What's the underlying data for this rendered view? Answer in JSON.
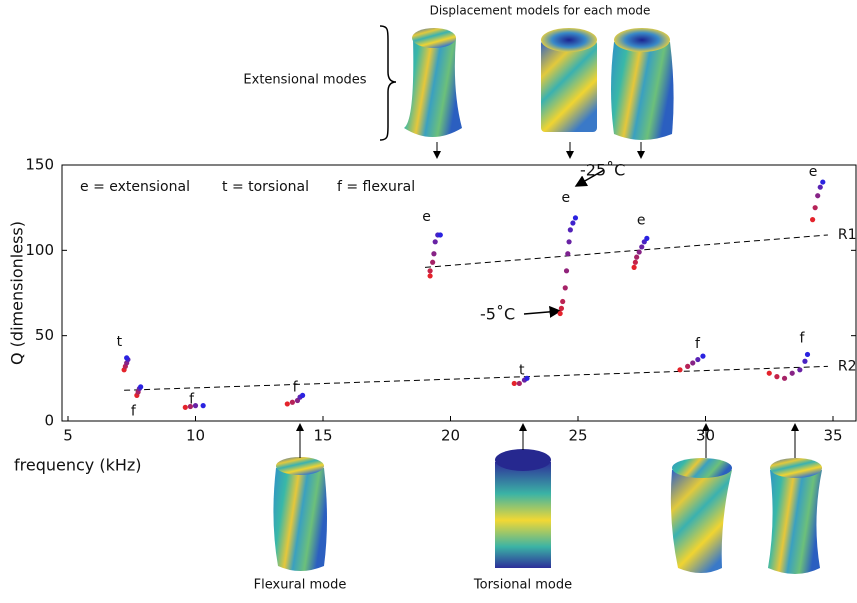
{
  "chart_data": {
    "type": "scatter",
    "title": "Displacement models for each mode",
    "x_label": "frequency (kHz)",
    "y_label": "Q (dimensionless)",
    "xlim": [
      5,
      36
    ],
    "ylim": [
      0,
      150
    ],
    "xticks": [
      5,
      10,
      15,
      20,
      25,
      30,
      35
    ],
    "yticks": [
      0,
      50,
      100,
      150
    ],
    "colors": [
      "#e4232b",
      "#2a22e0"
    ],
    "legend_texts": [
      "e = extensional",
      "t = torsional",
      "f = flexural"
    ],
    "mode_labels": [
      "Extensional modes",
      "Flexural mode",
      "Torsional mode"
    ],
    "temperature_labels": [
      "-25˚C",
      "-5˚C"
    ],
    "series": [
      {
        "label": "t",
        "x": [
          7.2,
          7.25,
          7.3,
          7.35,
          7.3
        ],
        "values": [
          30,
          32,
          34,
          36,
          37
        ]
      },
      {
        "label": "f",
        "x": [
          7.7,
          7.75,
          7.8,
          7.85
        ],
        "values": [
          15,
          17,
          19,
          20
        ]
      },
      {
        "label": "f",
        "x": [
          9.6,
          9.8,
          10.0,
          10.3
        ],
        "values": [
          8,
          8.5,
          9,
          9
        ]
      },
      {
        "label": "f",
        "x": [
          13.6,
          13.8,
          14.0,
          14.1,
          14.2
        ],
        "values": [
          10,
          11,
          12,
          14,
          15
        ]
      },
      {
        "label": "e",
        "x": [
          19.2,
          19.2,
          19.3,
          19.35,
          19.4,
          19.5,
          19.6
        ],
        "values": [
          85,
          88,
          93,
          98,
          105,
          109,
          109
        ]
      },
      {
        "label": "t",
        "x": [
          22.5,
          22.7,
          22.9,
          23.0
        ],
        "values": [
          22,
          22,
          24,
          25
        ]
      },
      {
        "label": "e",
        "x": [
          24.3,
          24.35,
          24.4,
          24.5,
          24.55,
          24.6,
          24.65,
          24.7,
          24.8,
          24.9
        ],
        "values": [
          63,
          66,
          70,
          78,
          88,
          98,
          105,
          112,
          116,
          119
        ]
      },
      {
        "label": "e",
        "x": [
          27.2,
          27.25,
          27.3,
          27.4,
          27.5,
          27.6,
          27.7
        ],
        "values": [
          90,
          93,
          96,
          99,
          102,
          105,
          107
        ]
      },
      {
        "label": "f",
        "x": [
          29.0,
          29.3,
          29.5,
          29.7,
          29.9
        ],
        "values": [
          30,
          32,
          34,
          36,
          38
        ]
      },
      {
        "label": "f",
        "x": [
          32.5,
          32.8,
          33.1,
          33.4,
          33.7,
          33.9,
          34.0
        ],
        "values": [
          28,
          26,
          25,
          28,
          30,
          35,
          39
        ]
      },
      {
        "label": "e",
        "x": [
          34.2,
          34.3,
          34.4,
          34.5,
          34.6
        ],
        "values": [
          118,
          125,
          132,
          137,
          140
        ]
      }
    ],
    "trend_lines": [
      {
        "name": "R1",
        "x": [
          19,
          34.8
        ],
        "values": [
          90,
          109
        ]
      },
      {
        "name": "R2",
        "x": [
          7.2,
          34.8
        ],
        "values": [
          18,
          32
        ]
      }
    ]
  }
}
